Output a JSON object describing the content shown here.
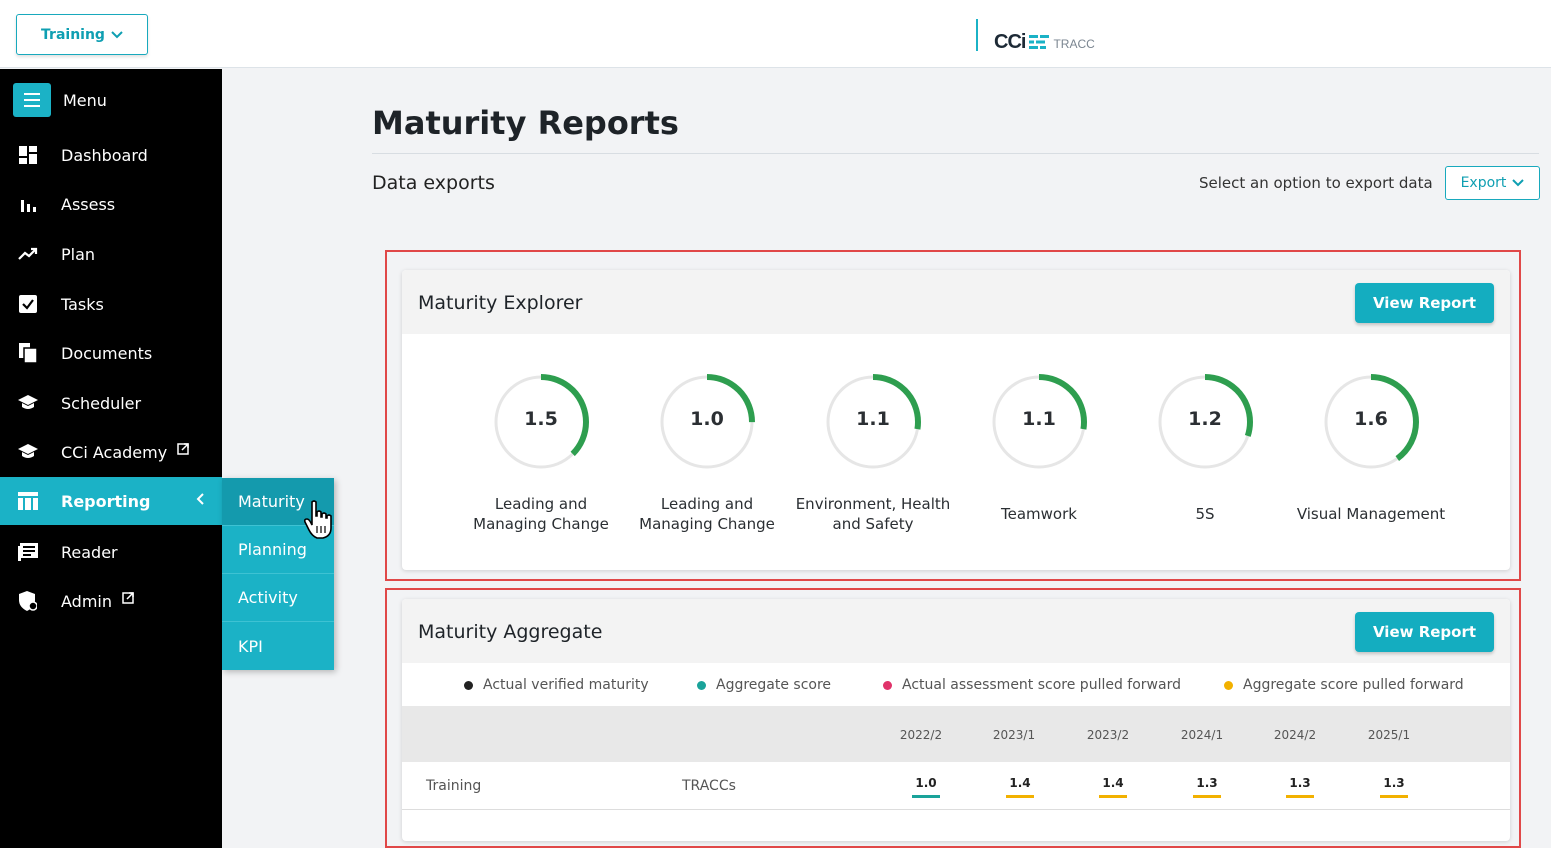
{
  "topbar": {
    "workspace_label": "Training",
    "logo_text": "CCi",
    "logo_sub": "TRACC"
  },
  "sidebar": {
    "menu_label": "Menu",
    "items": [
      {
        "label": "Dashboard",
        "icon": "dashboard-icon"
      },
      {
        "label": "Assess",
        "icon": "bar-chart-icon"
      },
      {
        "label": "Plan",
        "icon": "trend-icon"
      },
      {
        "label": "Tasks",
        "icon": "checkbox-icon"
      },
      {
        "label": "Documents",
        "icon": "documents-icon"
      },
      {
        "label": "Scheduler",
        "icon": "graduation-cap-icon"
      },
      {
        "label": "CCi Academy",
        "icon": "graduation-cap-icon",
        "external": true
      },
      {
        "label": "Reporting",
        "icon": "table-icon",
        "active": true
      },
      {
        "label": "Reader",
        "icon": "reader-icon"
      },
      {
        "label": "Admin",
        "icon": "shield-icon",
        "external": true
      }
    ],
    "reporting_submenu": [
      "Maturity",
      "Planning",
      "Activity",
      "KPI"
    ],
    "active_submenu": "Maturity"
  },
  "main": {
    "title": "Maturity Reports",
    "exports_label": "Data exports",
    "exports_hint": "Select an option to export data",
    "export_button": "Export"
  },
  "explorer": {
    "title": "Maturity Explorer",
    "view_button": "View Report",
    "gauges": [
      {
        "value": "1.5",
        "fraction": 0.375,
        "label_line1": "Leading and",
        "label_line2": "Managing Change"
      },
      {
        "value": "1.0",
        "fraction": 0.25,
        "label_line1": "Leading and",
        "label_line2": "Managing Change"
      },
      {
        "value": "1.1",
        "fraction": 0.275,
        "label_line1": "Environment, Health",
        "label_line2": "and Safety"
      },
      {
        "value": "1.1",
        "fraction": 0.275,
        "label_line1": "Teamwork",
        "label_line2": ""
      },
      {
        "value": "1.2",
        "fraction": 0.3,
        "label_line1": "5S",
        "label_line2": ""
      },
      {
        "value": "1.6",
        "fraction": 0.4,
        "label_line1": "Visual Management",
        "label_line2": ""
      }
    ]
  },
  "aggregate": {
    "title": "Maturity Aggregate",
    "view_button": "View Report",
    "legend": [
      {
        "label": "Actual verified maturity",
        "color": "#222222"
      },
      {
        "label": "Aggregate score",
        "color": "#1aa39a"
      },
      {
        "label": "Actual assessment score pulled forward",
        "color": "#e0336a"
      },
      {
        "label": "Aggregate score pulled forward",
        "color": "#f2b100"
      }
    ],
    "periods": [
      "2022/2",
      "2023/1",
      "2023/2",
      "2024/1",
      "2024/2",
      "2025/1"
    ],
    "rows": [
      {
        "name": "Training",
        "type": "TRACCs",
        "scores": [
          {
            "value": "1.0",
            "color": "#1aa39a"
          },
          {
            "value": "1.4",
            "color": "#f2b100"
          },
          {
            "value": "1.4",
            "color": "#f2b100"
          },
          {
            "value": "1.3",
            "color": "#f2b100"
          },
          {
            "value": "1.3",
            "color": "#f2b100"
          },
          {
            "value": "1.3",
            "color": "#f2b100"
          }
        ]
      }
    ]
  },
  "colors": {
    "accent": "#1bb2c6",
    "gauge_green": "#2e9e4f",
    "highlight_red": "#e04848"
  }
}
